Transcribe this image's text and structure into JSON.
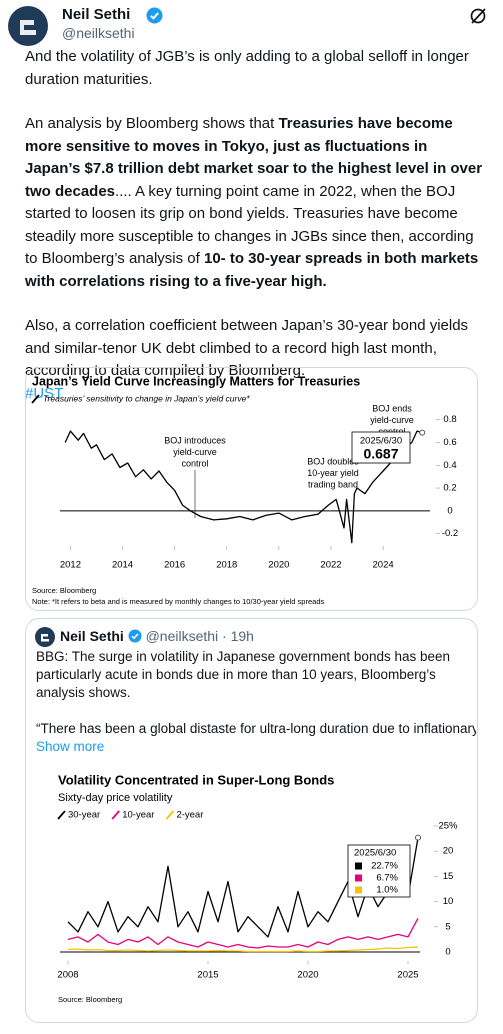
{
  "tweet": {
    "author": "Neil Sethi",
    "handle": "@neilksethi",
    "paragraphs": [
      [
        {
          "text": "And the volatility of JGB’s is only adding to a global selloff in longer duration maturities.",
          "bold": false
        }
      ],
      [
        {
          "text": "An analysis by Bloomberg shows that ",
          "bold": false
        },
        {
          "text": "Treasuries have become more sensitive to moves in Tokyo, just as fluctuations in Japan’s $7.8 trillion debt market soar to the highest level in over two decades",
          "bold": true
        },
        {
          "text": ".... A key turning point came in 2022, when the BOJ started to loosen its grip on bond yields. Treasuries have become steadily more susceptible to changes in JGBs since then, according to Bloomberg’s analysis of ",
          "bold": false
        },
        {
          "text": "10- to 30-year spreads in both markets with correlations rising to a five-year high.",
          "bold": true
        }
      ],
      [
        {
          "text": "Also, a correlation coefficient between Japan’s 30-year bond yields and similar-tenor UK debt climbed to a record high last month, according to data compiled by Bloomberg.",
          "bold": false
        }
      ]
    ],
    "hashtag": "#UST"
  },
  "chart_data": [
    {
      "type": "line",
      "title": "Japan’s Yield Curve Increasingly Matters for Treasuries",
      "x": [
        2011.8,
        2012.0,
        2012.3,
        2012.5,
        2012.8,
        2013.0,
        2013.3,
        2013.6,
        2013.9,
        2014.2,
        2014.5,
        2014.8,
        2015.1,
        2015.4,
        2015.7,
        2016.0,
        2016.3,
        2016.6,
        2017.0,
        2017.5,
        2018.0,
        2018.5,
        2019.0,
        2019.5,
        2020.0,
        2020.5,
        2021.0,
        2021.5,
        2021.9,
        2022.2,
        2022.5,
        2022.6,
        2022.8,
        2022.9,
        2023.0,
        2023.3,
        2023.6,
        2024.0,
        2024.4,
        2024.8,
        2025.1,
        2025.3,
        2025.5
      ],
      "series": [
        {
          "name": "Treasuries’ sensitivity to change in Japan’s yield curve*",
          "color": "#000000",
          "values": [
            0.6,
            0.7,
            0.62,
            0.68,
            0.55,
            0.58,
            0.45,
            0.5,
            0.38,
            0.42,
            0.3,
            0.36,
            0.28,
            0.35,
            0.25,
            0.18,
            0.05,
            0,
            -0.05,
            -0.08,
            -0.07,
            -0.05,
            -0.08,
            -0.04,
            -0.02,
            -0.08,
            -0.05,
            -0.03,
            0.05,
            0.1,
            -0.15,
            0.1,
            -0.28,
            0.15,
            0.2,
            0.15,
            0.25,
            0.35,
            0.45,
            0.55,
            0.6,
            0.7,
            0.687
          ]
        }
      ],
      "xlim": [
        2011.6,
        2025.8
      ],
      "xticks": [
        2012,
        2014,
        2016,
        2018,
        2020,
        2022,
        2024
      ],
      "ylim": [
        -0.3,
        0.85
      ],
      "yticks": [
        -0.2,
        0,
        0.2,
        0.4,
        0.6,
        0.8
      ],
      "annotations": [
        {
          "lines": [
            "BOJ introduces",
            "yield-curve",
            "control"
          ]
        },
        {
          "lines": [
            "BOJ doubles",
            "10-year yield",
            "trading band"
          ]
        },
        {
          "lines": [
            "BOJ ends",
            "yield-curve",
            "control"
          ]
        }
      ],
      "callout": {
        "label": "2025/6/30",
        "value": 0.687
      },
      "source": "Source: Bloomberg",
      "note": "Note: *It refers to beta and is measured by monthly changes to 10/30-year yield spreads"
    },
    {
      "type": "line",
      "title": "Volatility Concentrated in Super-Long Bonds",
      "subtitle": "Sixty-day price volatility",
      "x": [
        2008,
        2008.5,
        2009,
        2009.5,
        2010,
        2010.5,
        2011,
        2011.5,
        2012,
        2012.5,
        2013,
        2013.5,
        2014,
        2014.5,
        2015,
        2015.5,
        2016,
        2016.5,
        2017,
        2017.5,
        2018,
        2018.5,
        2019,
        2019.5,
        2020,
        2020.5,
        2021,
        2021.5,
        2022,
        2022.5,
        2023,
        2023.5,
        2024,
        2024.5,
        2025,
        2025.5
      ],
      "series": [
        {
          "name": "30-year",
          "color": "#000000",
          "values": [
            6,
            4,
            8,
            5,
            10,
            4,
            7,
            5,
            9,
            6,
            17,
            5,
            8,
            4,
            12,
            6,
            14,
            4,
            7,
            5,
            3,
            9,
            4,
            12,
            5,
            8,
            6,
            10,
            14,
            7,
            13,
            9,
            12,
            14,
            11,
            22.7
          ]
        },
        {
          "name": "10-year",
          "color": "#e6007e",
          "values": [
            2.5,
            3,
            2,
            3.5,
            2,
            1.5,
            2.5,
            2,
            3,
            1.5,
            3,
            2,
            1.5,
            1,
            2,
            1.5,
            1,
            1.5,
            1,
            0.8,
            1.2,
            1,
            1,
            1.5,
            1,
            2,
            1.5,
            2.5,
            3,
            2.5,
            3,
            2.5,
            3,
            3.5,
            3,
            6.7
          ]
        },
        {
          "name": "2-year",
          "color": "#f5c400",
          "values": [
            0.5,
            0.6,
            0.4,
            0.5,
            0.3,
            0.3,
            0.4,
            0.3,
            0.2,
            0.3,
            0.4,
            0.3,
            0.2,
            0.2,
            0.2,
            0.3,
            0.2,
            0.2,
            0.1,
            0.1,
            0.1,
            0.1,
            0.1,
            0.2,
            0.1,
            0.1,
            0.2,
            0.2,
            0.3,
            0.4,
            0.5,
            0.6,
            0.8,
            0.7,
            0.9,
            1.0
          ]
        }
      ],
      "xlim": [
        2007.6,
        2025.6
      ],
      "xticks": [
        2008,
        2015,
        2020,
        2025
      ],
      "ylim": [
        -1.5,
        25
      ],
      "yticks": [
        0,
        5,
        10,
        15,
        20,
        {
          "value": 25,
          "label": "25%"
        }
      ],
      "callout": {
        "label": "2025/6/30",
        "values": [
          22.7,
          6.7,
          1.0
        ],
        "value_labels": [
          "22.7%",
          "6.7%",
          "1.0%"
        ]
      },
      "source": "Source: Bloomberg"
    }
  ],
  "quoted_tweet": {
    "author": "Neil Sethi",
    "handle": "@neilksethi",
    "time": "19h",
    "paragraphs": [
      "BBG: The surge in volatility in Japanese government bonds has been particularly acute in bonds due in more than 10 years, Bloomberg’s analysis shows.",
      "“There has been a global distaste for ultra-long duration due to inflationary …"
    ],
    "show_more": "Show more"
  }
}
